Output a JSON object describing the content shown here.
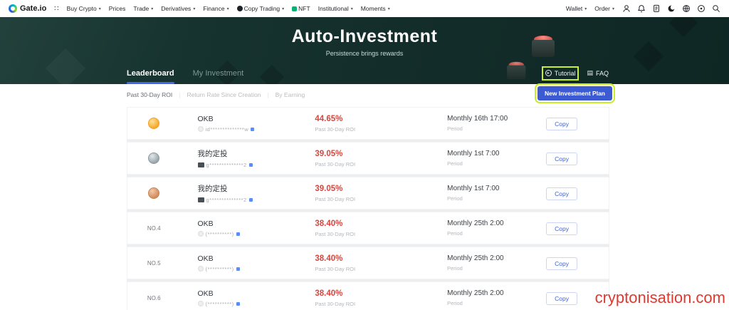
{
  "nav": {
    "logo_text": "Gate.io",
    "menu": [
      {
        "label": "Buy Crypto",
        "caret": true
      },
      {
        "label": "Prices",
        "caret": false
      },
      {
        "label": "Trade",
        "caret": true
      },
      {
        "label": "Derivatives",
        "caret": true
      },
      {
        "label": "Finance",
        "caret": true
      },
      {
        "label": "Copy Trading",
        "caret": true,
        "icon": "copy-trading"
      },
      {
        "label": "NFT",
        "caret": false,
        "icon": "nft"
      },
      {
        "label": "Institutional",
        "caret": true
      },
      {
        "label": "Moments",
        "caret": true
      }
    ],
    "right_menu": [
      {
        "label": "Wallet",
        "caret": true
      },
      {
        "label": "Order",
        "caret": true
      }
    ],
    "icon_names": [
      "profile",
      "notifications",
      "orders",
      "theme",
      "language",
      "settings",
      "search"
    ]
  },
  "banner": {
    "title": "Auto-Investment",
    "subtitle": "Persistence brings rewards"
  },
  "tabs": [
    {
      "label": "Leaderboard",
      "active": true
    },
    {
      "label": "My Investment",
      "active": false
    }
  ],
  "header_actions": {
    "tutorial": "Tutorial",
    "faq": "FAQ"
  },
  "toolbar": {
    "filters": [
      {
        "label": "Past 30-Day ROI",
        "active": true
      },
      {
        "label": "Return Rate Since Creation",
        "active": false
      },
      {
        "label": "By Earning",
        "active": false
      }
    ],
    "new_plan_label": "New Investment Plan"
  },
  "leaderboard": {
    "roi_label": "Past 30-Day ROI",
    "period_label": "Period",
    "copy_label": "Copy",
    "rows": [
      {
        "rank": "1",
        "rank_style": "gold",
        "name": "OKB",
        "user": "id**************w",
        "user_icon": "avatar",
        "roi": "44.65%",
        "period": "Monthly 16th 17:00"
      },
      {
        "rank": "2",
        "rank_style": "silver",
        "name": "我的定投",
        "user": "g**************2",
        "user_icon": "badge",
        "roi": "39.05%",
        "period": "Monthly 1st 7:00"
      },
      {
        "rank": "3",
        "rank_style": "bronze",
        "name": "我的定投",
        "user": "g**************2",
        "user_icon": "badge",
        "roi": "39.05%",
        "period": "Monthly 1st 7:00"
      },
      {
        "rank": "NO.4",
        "rank_style": "text",
        "name": "OKB",
        "user": "(**********)",
        "user_icon": "avatar",
        "roi": "38.40%",
        "period": "Monthly 25th 2:00"
      },
      {
        "rank": "NO.5",
        "rank_style": "text",
        "name": "OKB",
        "user": "(**********)",
        "user_icon": "avatar",
        "roi": "38.40%",
        "period": "Monthly 25th 2:00"
      },
      {
        "rank": "NO.6",
        "rank_style": "text",
        "name": "OKB",
        "user": "(**********)",
        "user_icon": "avatar",
        "roi": "38.40%",
        "period": "Monthly 25th 2:00"
      }
    ]
  },
  "watermark": "cryptonisation.com",
  "colors": {
    "accent_blue": "#3c5bd2",
    "roi_red": "#d9453d",
    "annotation_green": "#c9ee2b",
    "banner_bg": "#132d2a"
  }
}
